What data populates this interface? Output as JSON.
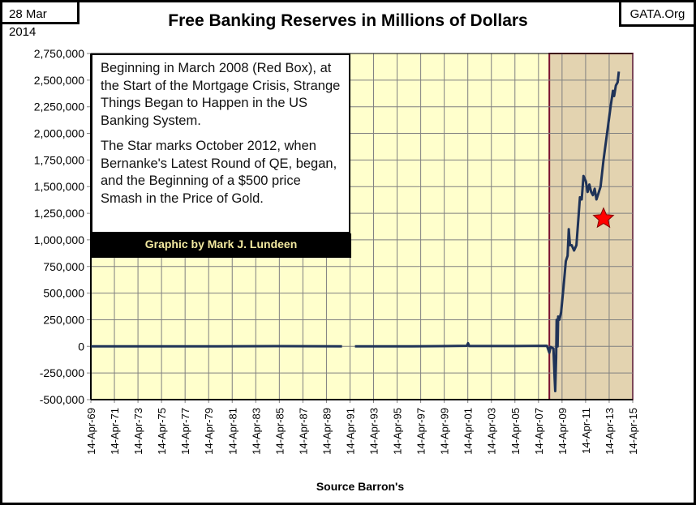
{
  "header": {
    "date": "28 Mar 2014",
    "site": "GATA.Org"
  },
  "annotation": {
    "paragraph1": "Beginning in March 2008 (Red Box), at the Start of the Mortgage Crisis, Strange Things Began to Happen in the US Banking System.",
    "paragraph2": "The Star marks October 2012, when Bernanke's Latest Round of QE, began, and the Beginning of a $500 price Smash in the Price of Gold.",
    "credit": "Graphic by Mark J. Lundeen"
  },
  "colors": {
    "plot_bg": "#ffffcc",
    "highlight_bg": "#e3d3b0",
    "highlight_border": "#7a1030",
    "line": "#1f3358",
    "star": "#ff0000",
    "grid": "#808080"
  },
  "chart_data": {
    "type": "line",
    "title": "Free Banking Reserves in Millions of Dollars",
    "xlabel": "Source Barron's",
    "ylabel": "",
    "xlim": [
      1969.28,
      2015.28
    ],
    "ylim": [
      -500000,
      2750000
    ],
    "grid": true,
    "yticks": [
      -500000,
      -250000,
      0,
      250000,
      500000,
      750000,
      1000000,
      1250000,
      1500000,
      1750000,
      2000000,
      2250000,
      2500000,
      2750000
    ],
    "ytick_labels": [
      "-500,000",
      "-250,000",
      "0",
      "250,000",
      "500,000",
      "750,000",
      "1,000,000",
      "1,250,000",
      "1,500,000",
      "1,750,000",
      "2,000,000",
      "2,250,000",
      "2,500,000",
      "2,750,000"
    ],
    "xtick_labels": [
      "14-Apr-69",
      "14-Apr-71",
      "14-Apr-73",
      "14-Apr-75",
      "14-Apr-77",
      "14-Apr-79",
      "14-Apr-81",
      "14-Apr-83",
      "14-Apr-85",
      "14-Apr-87",
      "14-Apr-89",
      "14-Apr-91",
      "14-Apr-93",
      "14-Apr-95",
      "14-Apr-97",
      "14-Apr-99",
      "14-Apr-01",
      "14-Apr-03",
      "14-Apr-05",
      "14-Apr-07",
      "14-Apr-09",
      "14-Apr-11",
      "14-Apr-13",
      "14-Apr-15"
    ],
    "highlight_region": {
      "label": "Red Box",
      "x_start": 2008.2,
      "x_end": 2015.28
    },
    "star_marker": {
      "x": 2012.8,
      "y": 1200000
    },
    "series": [
      {
        "name": "Free Banking Reserves",
        "segments": [
          [
            [
              1969.3,
              0
            ],
            [
              1975,
              0
            ],
            [
              1980,
              0
            ],
            [
              1985,
              2000
            ],
            [
              1988,
              1000
            ],
            [
              1990.6,
              0
            ]
          ],
          [
            [
              1991.7,
              0
            ],
            [
              1995,
              0
            ],
            [
              1999,
              2000
            ],
            [
              2001.2,
              5000
            ],
            [
              2001.3,
              30000
            ],
            [
              2001.4,
              3000
            ],
            [
              2005,
              3000
            ],
            [
              2008.0,
              5000
            ],
            [
              2008.2,
              -60000
            ],
            [
              2008.3,
              -5000
            ],
            [
              2008.55,
              -20000
            ],
            [
              2008.65,
              -300000
            ],
            [
              2008.7,
              -420000
            ],
            [
              2008.78,
              -100000
            ],
            [
              2008.82,
              250000
            ],
            [
              2008.9,
              0
            ],
            [
              2008.95,
              280000
            ],
            [
              2009.05,
              250000
            ],
            [
              2009.2,
              320000
            ],
            [
              2009.4,
              550000
            ],
            [
              2009.6,
              800000
            ],
            [
              2009.75,
              850000
            ],
            [
              2009.85,
              1100000
            ],
            [
              2009.95,
              950000
            ],
            [
              2010.1,
              950000
            ],
            [
              2010.3,
              900000
            ],
            [
              2010.5,
              950000
            ],
            [
              2010.8,
              1400000
            ],
            [
              2010.95,
              1380000
            ],
            [
              2011.1,
              1600000
            ],
            [
              2011.3,
              1550000
            ],
            [
              2011.45,
              1450000
            ],
            [
              2011.6,
              1520000
            ],
            [
              2011.75,
              1450000
            ],
            [
              2011.9,
              1420000
            ],
            [
              2012.05,
              1480000
            ],
            [
              2012.2,
              1380000
            ],
            [
              2012.35,
              1430000
            ],
            [
              2012.55,
              1500000
            ],
            [
              2012.8,
              1750000
            ],
            [
              2013.1,
              2000000
            ],
            [
              2013.4,
              2250000
            ],
            [
              2013.6,
              2400000
            ],
            [
              2013.7,
              2350000
            ],
            [
              2013.85,
              2450000
            ],
            [
              2014.0,
              2480000
            ],
            [
              2014.1,
              2580000
            ]
          ]
        ]
      }
    ]
  }
}
